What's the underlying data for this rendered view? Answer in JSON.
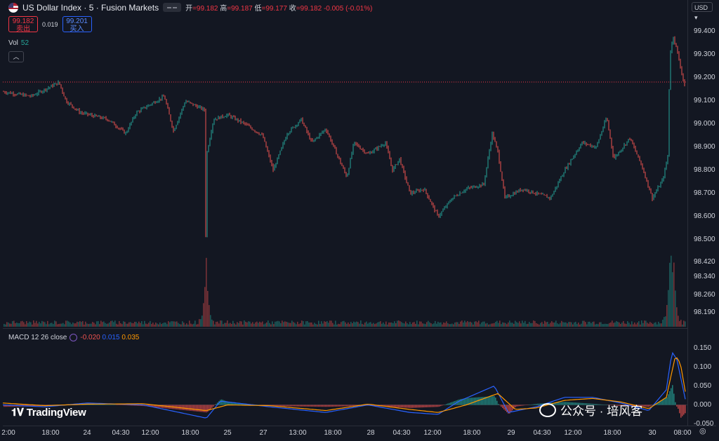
{
  "header": {
    "title": "US Dollar Index · 5 · Fusion Markets",
    "ohlc": [
      {
        "k": "开",
        "v": "=99.182"
      },
      {
        "k": "高",
        "v": "=99.187"
      },
      {
        "k": "低",
        "v": "=99.177"
      },
      {
        "k": "收",
        "v": "=99.182"
      }
    ],
    "change": "-0.005 (-0.01%)"
  },
  "trade": {
    "sell_price": "99.182",
    "sell_label": "卖出",
    "spread": "0.019",
    "buy_price": "99.201",
    "buy_label": "买入"
  },
  "volume": {
    "label": "Vol",
    "value": "52"
  },
  "macd": {
    "label": "MACD 12 26 close",
    "hist": "-0.020",
    "macd": "0.015",
    "signal": "0.035"
  },
  "currency": "USD",
  "colors": {
    "up": "#26a69a",
    "down": "#ef5350",
    "macd": "#2962ff",
    "signal": "#ff9800",
    "price_line": "#f23645"
  },
  "price_axis": [
    "99.400",
    "99.300",
    "99.200",
    "99.100",
    "99.000",
    "98.900",
    "98.800",
    "98.700",
    "98.600",
    "98.500",
    "98.420",
    "98.340",
    "98.260",
    "98.190"
  ],
  "macd_axis": [
    "0.150",
    "0.100",
    "0.050",
    "0.000",
    "-0.050"
  ],
  "time_axis": [
    "2:00",
    "18:00",
    "24",
    "04:30",
    "12:00",
    "18:00",
    "25",
    "27",
    "13:00",
    "18:00",
    "28",
    "04:30",
    "12:00",
    "18:00",
    "29",
    "04:30",
    "12:00",
    "18:00",
    "30",
    "08:00"
  ],
  "logo": "TradingView",
  "watermark": "公众号 · 培风客",
  "chart_data": {
    "type": "candlestick",
    "price_path": [
      [
        0,
        99.14
      ],
      [
        40,
        99.12
      ],
      [
        80,
        99.18
      ],
      [
        90,
        99.1
      ],
      [
        110,
        99.05
      ],
      [
        150,
        99.02
      ],
      [
        175,
        98.96
      ],
      [
        190,
        99.05
      ],
      [
        230,
        99.12
      ],
      [
        243,
        98.97
      ],
      [
        260,
        99.1
      ],
      [
        288,
        99.06
      ],
      [
        289,
        98.52
      ],
      [
        291,
        98.88
      ],
      [
        300,
        99.02
      ],
      [
        320,
        99.04
      ],
      [
        345,
        99.0
      ],
      [
        370,
        98.95
      ],
      [
        385,
        98.8
      ],
      [
        405,
        98.96
      ],
      [
        425,
        99.02
      ],
      [
        440,
        98.92
      ],
      [
        460,
        98.98
      ],
      [
        480,
        98.84
      ],
      [
        490,
        98.77
      ],
      [
        500,
        98.92
      ],
      [
        520,
        98.87
      ],
      [
        545,
        98.92
      ],
      [
        555,
        98.8
      ],
      [
        565,
        98.85
      ],
      [
        580,
        98.7
      ],
      [
        600,
        98.72
      ],
      [
        620,
        98.6
      ],
      [
        640,
        98.68
      ],
      [
        660,
        98.72
      ],
      [
        685,
        98.74
      ],
      [
        697,
        98.96
      ],
      [
        705,
        98.88
      ],
      [
        715,
        98.68
      ],
      [
        740,
        98.72
      ],
      [
        760,
        98.7
      ],
      [
        780,
        98.68
      ],
      [
        800,
        98.8
      ],
      [
        825,
        98.92
      ],
      [
        845,
        98.9
      ],
      [
        860,
        99.03
      ],
      [
        870,
        98.85
      ],
      [
        893,
        98.94
      ],
      [
        910,
        98.82
      ],
      [
        925,
        98.68
      ],
      [
        940,
        98.76
      ],
      [
        947,
        98.86
      ],
      [
        950,
        99.3
      ],
      [
        955,
        99.38
      ],
      [
        960,
        99.32
      ],
      [
        972,
        99.15
      ]
    ],
    "current_price": 99.182,
    "volume_spikes": [
      [
        289,
        0.85
      ],
      [
        950,
        1.0
      ],
      [
        955,
        0.6
      ]
    ],
    "macd_path": [
      [
        0,
        0.0
      ],
      [
        60,
        -0.005
      ],
      [
        120,
        0.005
      ],
      [
        200,
        0.0
      ],
      [
        290,
        -0.035
      ],
      [
        310,
        0.01
      ],
      [
        380,
        -0.005
      ],
      [
        460,
        -0.02
      ],
      [
        520,
        0.0
      ],
      [
        580,
        -0.02
      ],
      [
        620,
        -0.025
      ],
      [
        650,
        0.01
      ],
      [
        700,
        0.05
      ],
      [
        720,
        -0.02
      ],
      [
        760,
        -0.005
      ],
      [
        800,
        0.02
      ],
      [
        840,
        0.02
      ],
      [
        880,
        0.005
      ],
      [
        920,
        -0.015
      ],
      [
        945,
        0.04
      ],
      [
        953,
        0.14
      ],
      [
        960,
        0.12
      ],
      [
        972,
        0.015
      ]
    ],
    "signal_path": [
      [
        0,
        0.005
      ],
      [
        60,
        -0.002
      ],
      [
        120,
        0.002
      ],
      [
        200,
        0.003
      ],
      [
        290,
        -0.015
      ],
      [
        320,
        0.0
      ],
      [
        380,
        -0.002
      ],
      [
        460,
        -0.015
      ],
      [
        520,
        0.002
      ],
      [
        580,
        -0.012
      ],
      [
        620,
        -0.02
      ],
      [
        660,
        0.0
      ],
      [
        705,
        0.03
      ],
      [
        730,
        -0.012
      ],
      [
        760,
        -0.008
      ],
      [
        800,
        0.012
      ],
      [
        840,
        0.017
      ],
      [
        880,
        0.008
      ],
      [
        920,
        -0.01
      ],
      [
        945,
        0.02
      ],
      [
        958,
        0.13
      ],
      [
        965,
        0.11
      ],
      [
        972,
        0.035
      ]
    ]
  }
}
